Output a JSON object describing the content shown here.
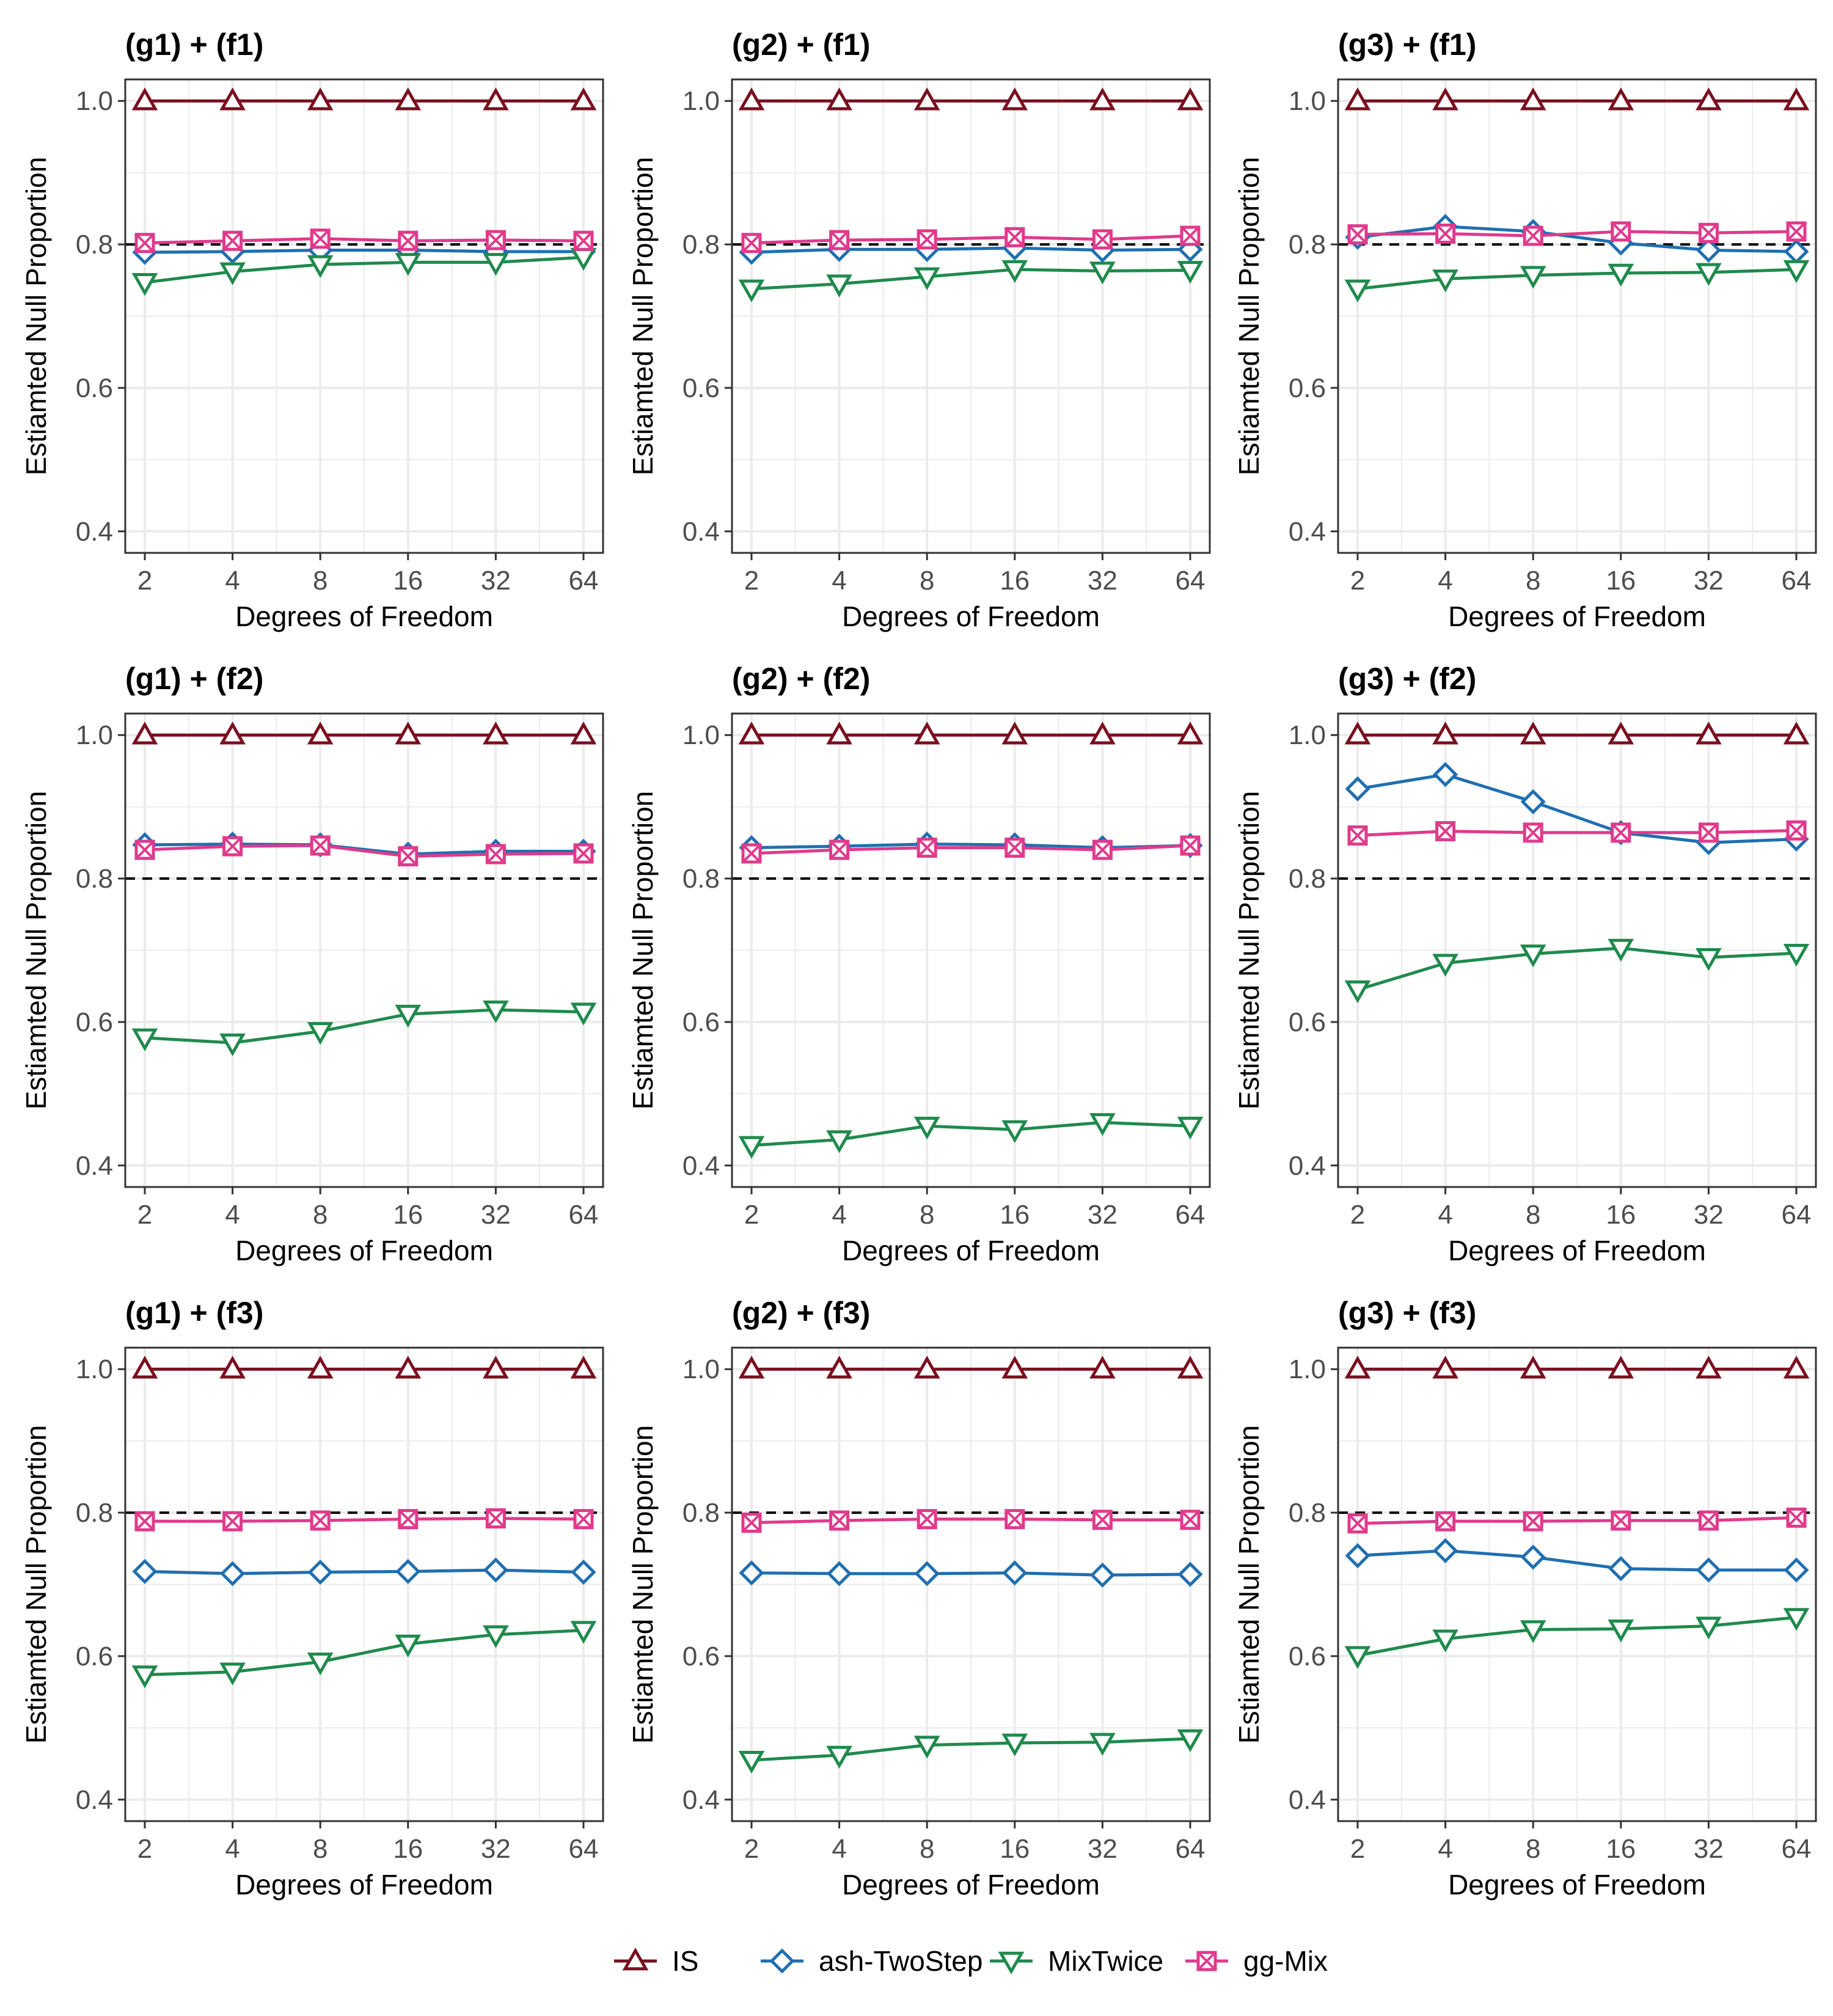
{
  "chart_data": [
    {
      "type": "line",
      "title": "(g1) + (f1)",
      "xlabel": "Degrees of Freedom",
      "ylabel": "Estiamted Null Proportion",
      "categories": [
        "2",
        "4",
        "8",
        "16",
        "32",
        "64"
      ],
      "ylim": [
        0.37,
        1.03
      ],
      "yticks": [
        "0.4",
        "0.6",
        "0.8",
        "1.0"
      ],
      "reference_line": 0.8,
      "grid": true,
      "series": [
        {
          "name": "IS",
          "values": [
            1.0,
            1.0,
            1.0,
            1.0,
            1.0,
            1.0
          ]
        },
        {
          "name": "ash-TwoStep",
          "values": [
            0.789,
            0.79,
            0.792,
            0.792,
            0.79,
            0.79
          ]
        },
        {
          "name": "MixTwice",
          "values": [
            0.747,
            0.762,
            0.772,
            0.775,
            0.775,
            0.782
          ]
        },
        {
          "name": "gg-Mix",
          "values": [
            0.802,
            0.805,
            0.808,
            0.805,
            0.806,
            0.805
          ]
        }
      ]
    },
    {
      "type": "line",
      "title": "(g2) + (f1)",
      "xlabel": "Degrees of Freedom",
      "ylabel": "Estiamted Null Proportion",
      "categories": [
        "2",
        "4",
        "8",
        "16",
        "32",
        "64"
      ],
      "ylim": [
        0.37,
        1.03
      ],
      "yticks": [
        "0.4",
        "0.6",
        "0.8",
        "1.0"
      ],
      "reference_line": 0.8,
      "grid": true,
      "series": [
        {
          "name": "IS",
          "values": [
            1.0,
            1.0,
            1.0,
            1.0,
            1.0,
            1.0
          ]
        },
        {
          "name": "ash-TwoStep",
          "values": [
            0.789,
            0.793,
            0.793,
            0.795,
            0.792,
            0.793
          ]
        },
        {
          "name": "MixTwice",
          "values": [
            0.738,
            0.745,
            0.755,
            0.765,
            0.763,
            0.764
          ]
        },
        {
          "name": "gg-Mix",
          "values": [
            0.802,
            0.806,
            0.807,
            0.81,
            0.807,
            0.812
          ]
        }
      ]
    },
    {
      "type": "line",
      "title": "(g3) + (f1)",
      "xlabel": "Degrees of Freedom",
      "ylabel": "Estiamted Null Proportion",
      "categories": [
        "2",
        "4",
        "8",
        "16",
        "32",
        "64"
      ],
      "ylim": [
        0.37,
        1.03
      ],
      "yticks": [
        "0.4",
        "0.6",
        "0.8",
        "1.0"
      ],
      "reference_line": 0.8,
      "grid": true,
      "series": [
        {
          "name": "IS",
          "values": [
            1.0,
            1.0,
            1.0,
            1.0,
            1.0,
            1.0
          ]
        },
        {
          "name": "ash-TwoStep",
          "values": [
            0.81,
            0.825,
            0.818,
            0.802,
            0.792,
            0.79
          ]
        },
        {
          "name": "MixTwice",
          "values": [
            0.738,
            0.752,
            0.757,
            0.76,
            0.761,
            0.765
          ]
        },
        {
          "name": "gg-Mix",
          "values": [
            0.814,
            0.815,
            0.812,
            0.818,
            0.816,
            0.818
          ]
        }
      ]
    },
    {
      "type": "line",
      "title": "(g1) + (f2)",
      "xlabel": "Degrees of Freedom",
      "ylabel": "Estiamted Null Proportion",
      "categories": [
        "2",
        "4",
        "8",
        "16",
        "32",
        "64"
      ],
      "ylim": [
        0.37,
        1.03
      ],
      "yticks": [
        "0.4",
        "0.6",
        "0.8",
        "1.0"
      ],
      "reference_line": 0.8,
      "grid": true,
      "series": [
        {
          "name": "IS",
          "values": [
            1.0,
            1.0,
            1.0,
            1.0,
            1.0,
            1.0
          ]
        },
        {
          "name": "ash-TwoStep",
          "values": [
            0.847,
            0.848,
            0.847,
            0.834,
            0.838,
            0.838
          ]
        },
        {
          "name": "MixTwice",
          "values": [
            0.578,
            0.571,
            0.587,
            0.611,
            0.617,
            0.614
          ]
        },
        {
          "name": "gg-Mix",
          "values": [
            0.84,
            0.845,
            0.846,
            0.831,
            0.834,
            0.835
          ]
        }
      ]
    },
    {
      "type": "line",
      "title": "(g2) + (f2)",
      "xlabel": "Degrees of Freedom",
      "ylabel": "Estiamted Null Proportion",
      "categories": [
        "2",
        "4",
        "8",
        "16",
        "32",
        "64"
      ],
      "ylim": [
        0.37,
        1.03
      ],
      "yticks": [
        "0.4",
        "0.6",
        "0.8",
        "1.0"
      ],
      "reference_line": 0.8,
      "grid": true,
      "series": [
        {
          "name": "IS",
          "values": [
            1.0,
            1.0,
            1.0,
            1.0,
            1.0,
            1.0
          ]
        },
        {
          "name": "ash-TwoStep",
          "values": [
            0.843,
            0.845,
            0.848,
            0.847,
            0.843,
            0.846
          ]
        },
        {
          "name": "MixTwice",
          "values": [
            0.428,
            0.436,
            0.455,
            0.45,
            0.46,
            0.455
          ]
        },
        {
          "name": "gg-Mix",
          "values": [
            0.835,
            0.84,
            0.843,
            0.843,
            0.84,
            0.846
          ]
        }
      ]
    },
    {
      "type": "line",
      "title": "(g3) + (f2)",
      "xlabel": "Degrees of Freedom",
      "ylabel": "Estiamted Null Proportion",
      "categories": [
        "2",
        "4",
        "8",
        "16",
        "32",
        "64"
      ],
      "ylim": [
        0.37,
        1.03
      ],
      "yticks": [
        "0.4",
        "0.6",
        "0.8",
        "1.0"
      ],
      "reference_line": 0.8,
      "grid": true,
      "series": [
        {
          "name": "IS",
          "values": [
            1.0,
            1.0,
            1.0,
            1.0,
            1.0,
            1.0
          ]
        },
        {
          "name": "ash-TwoStep",
          "values": [
            0.925,
            0.945,
            0.907,
            0.864,
            0.85,
            0.855
          ]
        },
        {
          "name": "MixTwice",
          "values": [
            0.645,
            0.682,
            0.695,
            0.703,
            0.69,
            0.696
          ]
        },
        {
          "name": "gg-Mix",
          "values": [
            0.86,
            0.866,
            0.864,
            0.864,
            0.864,
            0.867
          ]
        }
      ]
    },
    {
      "type": "line",
      "title": "(g1) + (f3)",
      "xlabel": "Degrees of Freedom",
      "ylabel": "Estiamted Null Proportion",
      "categories": [
        "2",
        "4",
        "8",
        "16",
        "32",
        "64"
      ],
      "ylim": [
        0.37,
        1.03
      ],
      "yticks": [
        "0.4",
        "0.6",
        "0.8",
        "1.0"
      ],
      "reference_line": 0.8,
      "grid": true,
      "series": [
        {
          "name": "IS",
          "values": [
            1.0,
            1.0,
            1.0,
            1.0,
            1.0,
            1.0
          ]
        },
        {
          "name": "ash-TwoStep",
          "values": [
            0.718,
            0.715,
            0.717,
            0.718,
            0.72,
            0.717
          ]
        },
        {
          "name": "MixTwice",
          "values": [
            0.574,
            0.578,
            0.592,
            0.617,
            0.63,
            0.636
          ]
        },
        {
          "name": "gg-Mix",
          "values": [
            0.788,
            0.788,
            0.789,
            0.791,
            0.792,
            0.791
          ]
        }
      ]
    },
    {
      "type": "line",
      "title": "(g2) + (f3)",
      "xlabel": "Degrees of Freedom",
      "ylabel": "Estiamted Null Proportion",
      "categories": [
        "2",
        "4",
        "8",
        "16",
        "32",
        "64"
      ],
      "ylim": [
        0.37,
        1.03
      ],
      "yticks": [
        "0.4",
        "0.6",
        "0.8",
        "1.0"
      ],
      "reference_line": 0.8,
      "grid": true,
      "series": [
        {
          "name": "IS",
          "values": [
            1.0,
            1.0,
            1.0,
            1.0,
            1.0,
            1.0
          ]
        },
        {
          "name": "ash-TwoStep",
          "values": [
            0.716,
            0.715,
            0.715,
            0.716,
            0.713,
            0.714
          ]
        },
        {
          "name": "MixTwice",
          "values": [
            0.455,
            0.462,
            0.476,
            0.479,
            0.48,
            0.485
          ]
        },
        {
          "name": "gg-Mix",
          "values": [
            0.786,
            0.789,
            0.791,
            0.791,
            0.79,
            0.79
          ]
        }
      ]
    },
    {
      "type": "line",
      "title": "(g3) + (f3)",
      "xlabel": "Degrees of Freedom",
      "ylabel": "Estiamted Null Proportion",
      "categories": [
        "2",
        "4",
        "8",
        "16",
        "32",
        "64"
      ],
      "ylim": [
        0.37,
        1.03
      ],
      "yticks": [
        "0.4",
        "0.6",
        "0.8",
        "1.0"
      ],
      "reference_line": 0.8,
      "grid": true,
      "series": [
        {
          "name": "IS",
          "values": [
            1.0,
            1.0,
            1.0,
            1.0,
            1.0,
            1.0
          ]
        },
        {
          "name": "ash-TwoStep",
          "values": [
            0.74,
            0.747,
            0.738,
            0.722,
            0.72,
            0.72
          ]
        },
        {
          "name": "MixTwice",
          "values": [
            0.601,
            0.624,
            0.637,
            0.638,
            0.642,
            0.654
          ]
        },
        {
          "name": "gg-Mix",
          "values": [
            0.785,
            0.788,
            0.788,
            0.789,
            0.789,
            0.793
          ]
        }
      ]
    }
  ],
  "legend": {
    "position": "bottom",
    "items": [
      {
        "label": "IS",
        "color": "#7a0f1f",
        "marker": "triangle-up-icon"
      },
      {
        "label": "ash-TwoStep",
        "color": "#1f6fb0",
        "marker": "diamond-icon"
      },
      {
        "label": "MixTwice",
        "color": "#1f8a4c",
        "marker": "triangle-down-icon"
      },
      {
        "label": "gg-Mix",
        "color": "#e03a8c",
        "marker": "square-cross-icon"
      }
    ]
  },
  "colors": {
    "IS": "#7a0f1f",
    "ash-TwoStep": "#1f6fb0",
    "MixTwice": "#1f8a4c",
    "gg-Mix": "#e03a8c",
    "reference_line": "#000000",
    "grid": "#ebebeb",
    "panel_border": "#333333"
  }
}
